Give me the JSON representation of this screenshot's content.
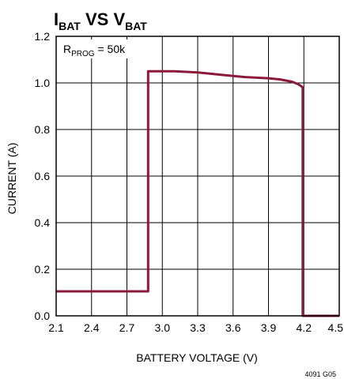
{
  "chart_data": {
    "type": "line",
    "title": {
      "main_i": "I",
      "main_i_sub": "BAT",
      "vs": " VS ",
      "main_v": "V",
      "main_v_sub": "BAT"
    },
    "xlabel": "BATTERY VOLTAGE (V)",
    "ylabel": "CURRENT (A)",
    "xlim": [
      2.1,
      4.5
    ],
    "ylim": [
      0.0,
      1.2
    ],
    "x_ticks": [
      "2.1",
      "2.4",
      "2.7",
      "3.0",
      "3.3",
      "3.6",
      "3.9",
      "4.2",
      "4.5"
    ],
    "y_ticks": [
      "0.0",
      "0.2",
      "0.4",
      "0.6",
      "0.8",
      "1.0",
      "1.2"
    ],
    "x_tick_values": [
      2.1,
      2.4,
      2.7,
      3.0,
      3.3,
      3.6,
      3.9,
      4.2,
      4.5
    ],
    "y_tick_values": [
      0.0,
      0.2,
      0.4,
      0.6,
      0.8,
      1.0,
      1.2
    ],
    "grid": true,
    "annotation": {
      "r": "R",
      "r_sub": "PROG",
      "rest": " = 50k"
    },
    "figure_id": "4091 G05",
    "series": [
      {
        "color": "#8b1a3a",
        "x": [
          2.1,
          2.88,
          2.88,
          2.9,
          3.0,
          3.1,
          3.3,
          3.5,
          3.7,
          3.9,
          4.0,
          4.1,
          4.15,
          4.18,
          4.19,
          4.19,
          4.5
        ],
        "y": [
          0.105,
          0.105,
          1.05,
          1.05,
          1.05,
          1.05,
          1.045,
          1.035,
          1.025,
          1.02,
          1.015,
          1.005,
          0.995,
          0.985,
          0.98,
          0.0,
          0.0
        ]
      }
    ]
  }
}
